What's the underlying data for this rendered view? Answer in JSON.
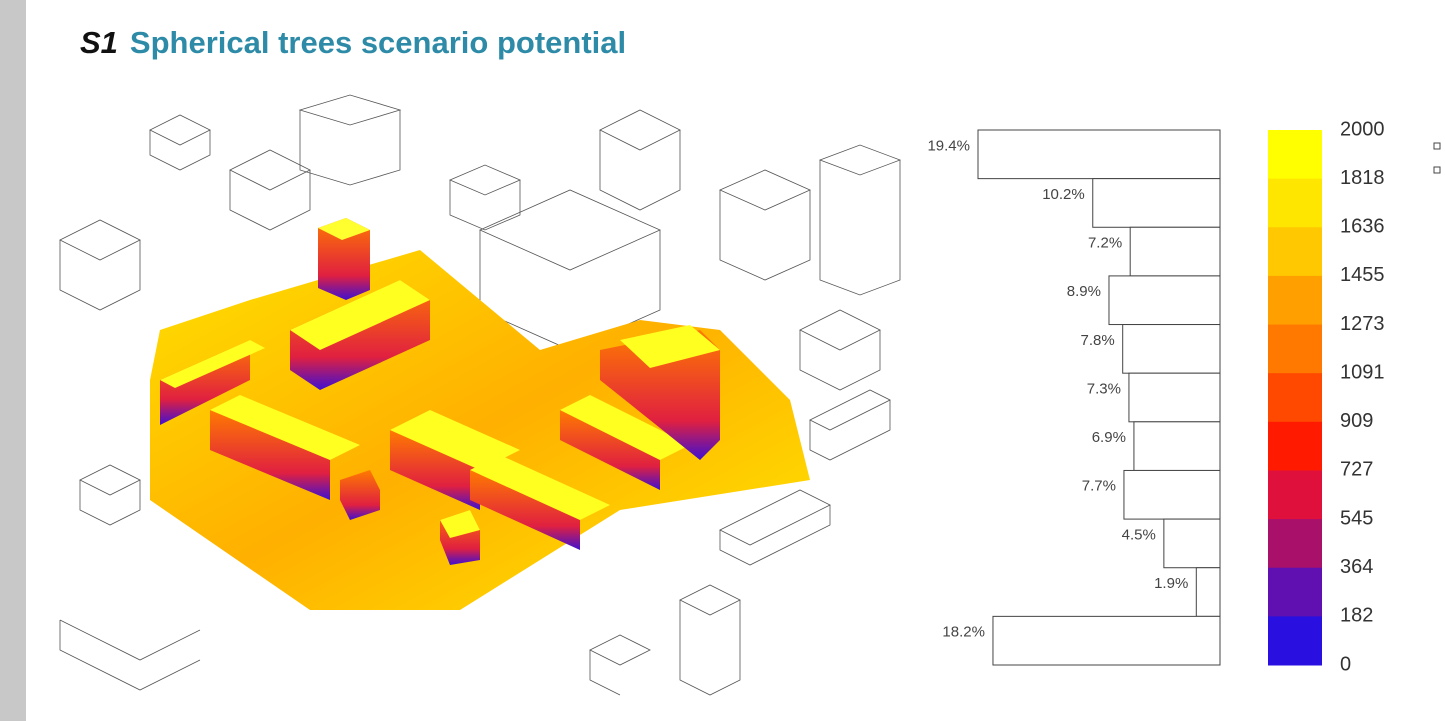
{
  "slide": {
    "title_prefix": "S1",
    "title": "Spherical trees scenario potential"
  },
  "chart_data": {
    "type": "bar",
    "orientation": "horizontal",
    "values": [
      19.4,
      10.2,
      7.2,
      8.9,
      7.8,
      7.3,
      6.9,
      7.7,
      4.5,
      1.9,
      18.2
    ],
    "value_labels": [
      "19.4%",
      "10.2%",
      "7.2%",
      "8.9%",
      "7.8%",
      "7.3%",
      "6.9%",
      "7.7%",
      "4.5%",
      "1.9%",
      "18.2%"
    ],
    "colorbar": {
      "ticks": [
        2000,
        1818,
        1636,
        1455,
        1273,
        1091,
        909,
        727,
        545,
        364,
        182,
        0
      ],
      "colors": [
        "#ffff00",
        "#ffe600",
        "#ffc800",
        "#ffa000",
        "#ff7800",
        "#ff4800",
        "#ff1a00",
        "#e0103c",
        "#a8106a",
        "#6010b0",
        "#2a10e0",
        "#0000ff"
      ]
    }
  }
}
